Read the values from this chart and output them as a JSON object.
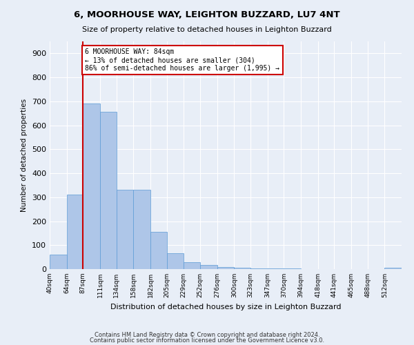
{
  "title": "6, MOORHOUSE WAY, LEIGHTON BUZZARD, LU7 4NT",
  "subtitle": "Size of property relative to detached houses in Leighton Buzzard",
  "xlabel": "Distribution of detached houses by size in Leighton Buzzard",
  "ylabel": "Number of detached properties",
  "bin_labels": [
    "40sqm",
    "64sqm",
    "87sqm",
    "111sqm",
    "134sqm",
    "158sqm",
    "182sqm",
    "205sqm",
    "229sqm",
    "252sqm",
    "276sqm",
    "300sqm",
    "323sqm",
    "347sqm",
    "370sqm",
    "394sqm",
    "418sqm",
    "441sqm",
    "465sqm",
    "488sqm",
    "512sqm"
  ],
  "bar_heights": [
    60,
    310,
    690,
    655,
    330,
    330,
    155,
    65,
    30,
    18,
    10,
    5,
    3,
    2,
    2,
    1,
    1,
    1,
    1,
    0,
    5
  ],
  "bar_color": "#aec6e8",
  "bar_edge_color": "#5b9bd5",
  "background_color": "#e8eef7",
  "grid_color": "#ffffff",
  "vline_x_idx": 1,
  "vline_color": "#cc0000",
  "annotation_text": "6 MOORHOUSE WAY: 84sqm\n← 13% of detached houses are smaller (304)\n86% of semi-detached houses are larger (1,995) →",
  "annotation_box_color": "#cc0000",
  "ylim": [
    0,
    950
  ],
  "yticks": [
    0,
    100,
    200,
    300,
    400,
    500,
    600,
    700,
    800,
    900
  ],
  "footer1": "Contains HM Land Registry data © Crown copyright and database right 2024.",
  "footer2": "Contains public sector information licensed under the Government Licence v3.0.",
  "bin_edges": [
    40,
    64,
    87,
    111,
    134,
    158,
    182,
    205,
    229,
    252,
    276,
    300,
    323,
    347,
    370,
    394,
    418,
    441,
    465,
    488,
    512,
    536
  ]
}
